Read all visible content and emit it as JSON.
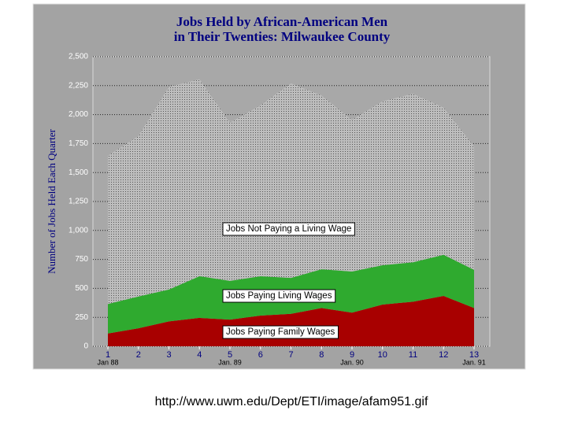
{
  "chart_data": {
    "type": "stacked-area",
    "title": "Jobs Held by African-American Men",
    "subtitle": "in Their Twenties: Milwaukee County",
    "y_label": "Number of Jobs Held Each Quarter",
    "categories": [
      "1",
      "2",
      "3",
      "4",
      "5",
      "6",
      "7",
      "8",
      "9",
      "10",
      "11",
      "12",
      "13"
    ],
    "sublabels": [
      "Jan 88",
      null,
      null,
      null,
      "Jan. 89",
      null,
      null,
      null,
      "Jan. 90",
      null,
      null,
      null,
      "Jan. 91"
    ],
    "series": [
      {
        "name": "Jobs Paying Family Wages",
        "color": "#a80000",
        "values": [
          110,
          155,
          215,
          245,
          230,
          265,
          280,
          330,
          290,
          360,
          385,
          435,
          330
        ]
      },
      {
        "name": "Jobs Paying Living Wages",
        "color": "#2faa2f",
        "values": [
          255,
          275,
          275,
          360,
          335,
          340,
          310,
          335,
          355,
          340,
          340,
          355,
          330
        ]
      },
      {
        "name": "Jobs Not Paying a Living Wage",
        "color": "#bdbdbd",
        "values": [
          1280,
          1385,
          1750,
          1700,
          1365,
          1475,
          1680,
          1500,
          1310,
          1415,
          1455,
          1270,
          1065
        ]
      }
    ],
    "ylim": [
      0,
      2500
    ],
    "yticks": [
      0,
      250,
      500,
      750,
      {
        "value": 1000,
        "label": "1,000"
      },
      {
        "value": 1250,
        "label": "1,250"
      },
      {
        "value": 1500,
        "label": "1,500"
      },
      {
        "value": 1750,
        "label": "1,750"
      },
      {
        "value": 2000,
        "label": "2,000"
      },
      {
        "value": 2250,
        "label": "2,250"
      },
      {
        "value": 2500,
        "label": "2,500"
      }
    ],
    "grid": true
  },
  "caption": "http://www.uwm.edu/Dept/ETI/image/afam951.gif"
}
